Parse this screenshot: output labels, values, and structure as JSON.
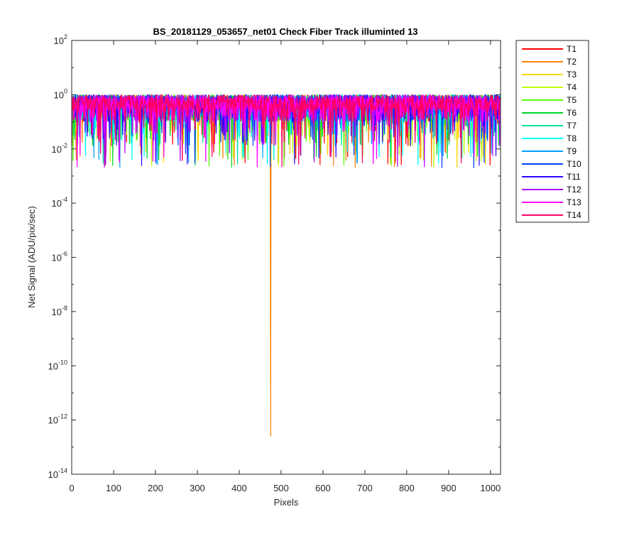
{
  "chart_data": {
    "type": "line",
    "title": "BS_20181129_053657_net01   Check Fiber     Track illuminted 13",
    "xlabel": "Pixels",
    "ylabel": "Net Signal (ADU/pix/sec)",
    "xlim": [
      0,
      1024
    ],
    "ylim": [
      1e-14,
      100
    ],
    "yscale": "log",
    "x_ticks": [
      0,
      100,
      200,
      300,
      400,
      500,
      600,
      700,
      800,
      900,
      1000
    ],
    "y_tick_exponents": [
      2,
      0,
      -2,
      -4,
      -6,
      -8,
      -10,
      -12,
      -14
    ],
    "y_tick_base": "10",
    "grid": false,
    "legend_position": "outside-right-top",
    "n_points_per_series": 1024,
    "typical_range": [
      0.002,
      1.8
    ],
    "series": [
      {
        "name": "T1",
        "color": "#ff0000"
      },
      {
        "name": "T2",
        "color": "#ff7f00",
        "notable_min": {
          "x": 475,
          "y": 2.5e-13
        }
      },
      {
        "name": "T3",
        "color": "#ffd700"
      },
      {
        "name": "T4",
        "color": "#bfff00"
      },
      {
        "name": "T5",
        "color": "#55ff00"
      },
      {
        "name": "T6",
        "color": "#00d62a"
      },
      {
        "name": "T7",
        "color": "#00e39a"
      },
      {
        "name": "T8",
        "color": "#00ffff"
      },
      {
        "name": "T9",
        "color": "#00a0ff"
      },
      {
        "name": "T10",
        "color": "#0040ff"
      },
      {
        "name": "T11",
        "color": "#3300ff"
      },
      {
        "name": "T12",
        "color": "#aa00ff"
      },
      {
        "name": "T13",
        "color": "#ff00ff"
      },
      {
        "name": "T14",
        "color": "#ff0066"
      }
    ]
  }
}
